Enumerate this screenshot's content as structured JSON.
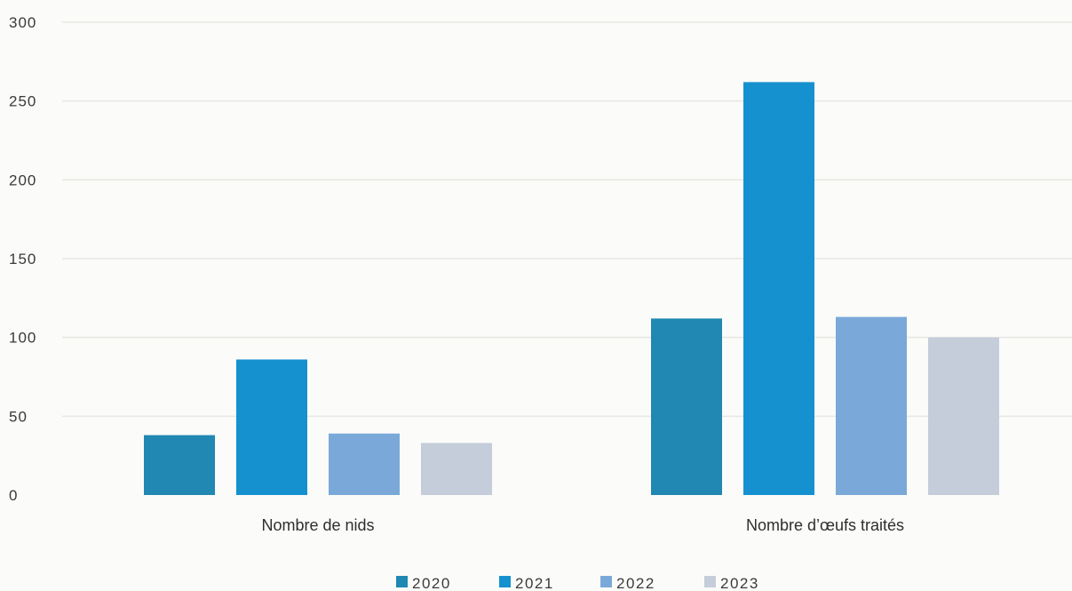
{
  "chart_data": {
    "type": "bar",
    "categories": [
      "Nombre de nids",
      "Nombre d’œufs traités"
    ],
    "series": [
      {
        "name": "2020",
        "values": [
          38,
          112
        ],
        "color": "#2088b2"
      },
      {
        "name": "2021",
        "values": [
          86,
          262
        ],
        "color": "#1691cf"
      },
      {
        "name": "2022",
        "values": [
          39,
          113
        ],
        "color": "#7aa9d9"
      },
      {
        "name": "2023",
        "values": [
          33,
          100
        ],
        "color": "#c5ccda"
      }
    ],
    "yticks": [
      "0",
      "50",
      "100",
      "150",
      "200",
      "250",
      "300"
    ],
    "ylim": [
      0,
      300
    ],
    "grid": true,
    "legend_position": "bottom-center",
    "title": "",
    "xlabel": "",
    "ylabel": ""
  }
}
